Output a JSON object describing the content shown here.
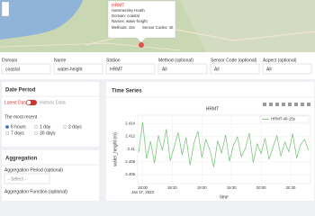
{
  "map": {
    "popup": {
      "title": "HRMT",
      "subtitle": "Hammersley Heath",
      "lines": [
        "Domain: coastal",
        "Names: water-height",
        "Methods: 15s",
        "Sensor Codes: 40"
      ]
    }
  },
  "filters": [
    {
      "label": "Domain",
      "value": "coastal"
    },
    {
      "label": "Name",
      "value": "water-height"
    },
    {
      "label": "Station",
      "value": "HRMT"
    },
    {
      "label": "Method (optional)",
      "value": "All"
    },
    {
      "label": "Sensor Code (optional)",
      "value": "All"
    },
    {
      "label": "Aspect (optional)",
      "value": "All"
    }
  ],
  "date_period": {
    "title": "Date Period",
    "toggle_on": "Latest Data",
    "toggle_off": "Historic Data",
    "recent_label": "The most recent",
    "options": [
      "6 hours",
      "1 day",
      "2 days",
      "7 days",
      "30 days"
    ]
  },
  "aggregation": {
    "title": "Aggregation",
    "period_label": "Aggregation Period (optional)",
    "period_value": "- Select -",
    "function_label": "Aggregation Function (optional)"
  },
  "panel_title": "Time Series",
  "chart_data": {
    "type": "line",
    "title": "HRMT",
    "xlabel": "time",
    "ylabel": "water_height (m)",
    "x": [
      "2023-01-17T17:56",
      "2023-01-17T18:00",
      "2023-01-17T18:04",
      "2023-01-17T18:08",
      "2023-01-17T18:12",
      "2023-01-17T18:16",
      "2023-01-17T18:20",
      "2023-01-17T18:24",
      "2023-01-17T18:28",
      "2023-01-17T18:32",
      "2023-01-17T18:36",
      "2023-01-17T18:40",
      "2023-01-17T18:44",
      "2023-01-17T18:48",
      "2023-01-17T18:52",
      "2023-01-17T18:56",
      "2023-01-17T19:00",
      "2023-01-17T19:04",
      "2023-01-17T19:08",
      "2023-01-17T19:12",
      "2023-01-17T19:16",
      "2023-01-17T19:20",
      "2023-01-17T19:24",
      "2023-01-17T19:28",
      "2023-01-17T19:32",
      "2023-01-17T19:36",
      "2023-01-17T19:40",
      "2023-01-17T19:44",
      "2023-01-17T19:48",
      "2023-01-17T19:52",
      "2023-01-17T19:56",
      "2023-01-17T20:00",
      "2023-01-17T20:04",
      "2023-01-17T20:08",
      "2023-01-17T20:12",
      "2023-01-17T20:16",
      "2023-01-17T20:20",
      "2023-01-17T20:24",
      "2023-01-17T20:28",
      "2023-01-17T20:32",
      "2023-01-17T20:36",
      "2023-01-17T20:40",
      "2023-01-17T20:44",
      "2023-01-17T20:48"
    ],
    "series": [
      {
        "name": "HRMT-40-15s",
        "color": "#6cc070",
        "values": [
          2.4095,
          2.4142,
          2.4085,
          2.4112,
          2.4078,
          2.4121,
          2.4098,
          2.4131,
          2.4082,
          2.4104,
          2.4126,
          2.4091,
          2.4118,
          2.4075,
          2.4109,
          2.4128,
          2.4087,
          2.4115,
          2.4099,
          2.4072,
          2.4113,
          2.4094,
          2.4122,
          2.4081,
          2.4106,
          2.4119,
          2.4088,
          2.4101,
          2.4125,
          2.4079,
          2.4108,
          2.4093,
          2.4117,
          2.4084,
          2.4103,
          2.4121,
          2.4089,
          2.4111,
          2.4096,
          2.4124,
          2.4086,
          2.4107,
          2.4115,
          2.4098
        ]
      }
    ],
    "xlim": [
      "2023-01-17T17:55",
      "2023-01-17T20:50"
    ],
    "xticks": [
      {
        "value": "2023-01-17T18:00",
        "label": "18:00"
      },
      {
        "value": "2023-01-17T18:30",
        "label": "18:30"
      },
      {
        "value": "2023-01-17T19:00",
        "label": "19:00"
      },
      {
        "value": "2023-01-17T19:30",
        "label": "19:30"
      },
      {
        "value": "2023-01-17T20:00",
        "label": "20:00"
      },
      {
        "value": "2023-01-17T20:30",
        "label": "20:30"
      }
    ],
    "xtick_date": "Jan 17, 2023",
    "ylim": [
      2.4046,
      2.4153
    ],
    "yticks": [
      2.406,
      2.408,
      2.41,
      2.412,
      2.414
    ],
    "grid": true,
    "legend": "top-right"
  }
}
